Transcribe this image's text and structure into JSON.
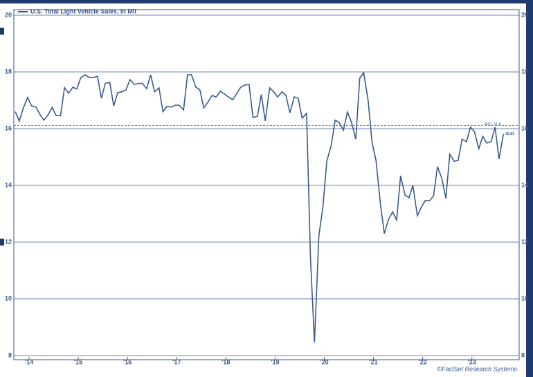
{
  "chart_data": {
    "type": "line",
    "series": [
      {
        "name": "U.S. Total Light Vehicle Sales, In Mil",
        "color": "#3a5a8c",
        "x": [
          2014.22,
          2014.3,
          2014.39,
          2014.47,
          2014.55,
          2014.64,
          2014.72,
          2014.8,
          2014.89,
          2014.97,
          2015.05,
          2015.14,
          2015.22,
          2015.3,
          2015.39,
          2015.47,
          2015.55,
          2015.64,
          2015.72,
          2015.8,
          2015.89,
          2015.97,
          2016.05,
          2016.14,
          2016.22,
          2016.3,
          2016.39,
          2016.47,
          2016.55,
          2016.64,
          2016.72,
          2016.8,
          2016.89,
          2016.97,
          2017.05,
          2017.14,
          2017.22,
          2017.3,
          2017.39,
          2017.47,
          2017.55,
          2017.64,
          2017.72,
          2017.8,
          2017.89,
          2017.97,
          2018.05,
          2018.14,
          2018.22,
          2018.3,
          2018.39,
          2018.47,
          2018.55,
          2018.64,
          2018.72,
          2018.8,
          2018.89,
          2018.97,
          2019.05,
          2019.14,
          2019.22,
          2019.3,
          2019.39,
          2019.47,
          2019.55,
          2019.64,
          2019.72,
          2019.8,
          2019.89,
          2019.97,
          2020.05,
          2020.14,
          2020.22,
          2020.3,
          2020.39,
          2020.47,
          2020.55,
          2020.64,
          2020.72,
          2020.8,
          2020.89,
          2020.97,
          2021.05,
          2021.14,
          2021.22,
          2021.3,
          2021.39,
          2021.47,
          2021.55,
          2021.64,
          2021.72,
          2021.8,
          2021.89,
          2021.97,
          2022.05,
          2022.14,
          2022.22,
          2022.3,
          2022.39,
          2022.47,
          2022.55,
          2022.64,
          2022.72,
          2022.8,
          2022.89,
          2022.97,
          2023.05,
          2023.14,
          2023.22,
          2023.3,
          2023.39,
          2023.47,
          2023.55,
          2023.64,
          2023.72,
          2023.8,
          2023.89,
          2023.97,
          2024.05,
          2024.14
        ],
        "values": [
          16.6,
          16.27,
          16.76,
          17.1,
          16.8,
          16.76,
          16.5,
          16.3,
          16.5,
          16.75,
          16.46,
          16.46,
          17.45,
          17.25,
          17.46,
          17.4,
          17.8,
          17.9,
          17.8,
          17.8,
          17.85,
          17.07,
          17.6,
          17.63,
          16.8,
          17.27,
          17.3,
          17.37,
          17.73,
          17.56,
          17.59,
          17.6,
          17.41,
          17.9,
          17.3,
          17.44,
          16.6,
          16.78,
          16.76,
          16.83,
          16.83,
          16.66,
          17.9,
          17.9,
          17.46,
          17.37,
          16.73,
          16.95,
          17.17,
          17.12,
          17.32,
          17.22,
          17.12,
          17.02,
          17.24,
          17.46,
          17.54,
          17.56,
          16.39,
          16.44,
          17.2,
          16.27,
          17.44,
          17.3,
          17.12,
          17.3,
          17.17,
          16.56,
          17.12,
          17.07,
          16.37,
          16.54,
          11.4,
          8.46,
          12.24,
          13.22,
          14.85,
          15.41,
          16.3,
          16.22,
          15.95,
          16.59,
          16.24,
          15.63,
          17.78,
          17.97,
          17.0,
          15.51,
          14.88,
          13.34,
          12.3,
          12.78,
          13.07,
          12.78,
          14.34,
          13.66,
          13.56,
          14.0,
          12.93,
          13.22,
          13.46,
          13.46,
          13.63,
          14.66,
          14.24,
          13.54,
          15.1,
          14.85,
          14.88,
          15.63,
          15.54,
          16.05,
          15.9,
          15.29,
          15.73,
          15.49,
          15.54,
          16.05,
          14.93,
          15.81
        ]
      }
    ],
    "last_value_label": "15.81",
    "reference_line": {
      "value": 16.11,
      "label": "AVG: 16.11"
    },
    "xlim": [
      2014.19,
      2024.46
    ],
    "xticks": [
      {
        "value": 2014.5,
        "label": "'14"
      },
      {
        "value": 2015.5,
        "label": "'15"
      },
      {
        "value": 2016.5,
        "label": "'16"
      },
      {
        "value": 2017.5,
        "label": "'17"
      },
      {
        "value": 2018.5,
        "label": "'18"
      },
      {
        "value": 2019.5,
        "label": "'19"
      },
      {
        "value": 2020.5,
        "label": "'20"
      },
      {
        "value": 2021.5,
        "label": "'21"
      },
      {
        "value": 2022.5,
        "label": "'22"
      },
      {
        "value": 2023.5,
        "label": "'23"
      }
    ],
    "ylim": [
      8,
      20
    ],
    "yticks": [
      8,
      10,
      12,
      14,
      16,
      18,
      20
    ],
    "grid": true,
    "source": "©FactSet Research Systems"
  }
}
